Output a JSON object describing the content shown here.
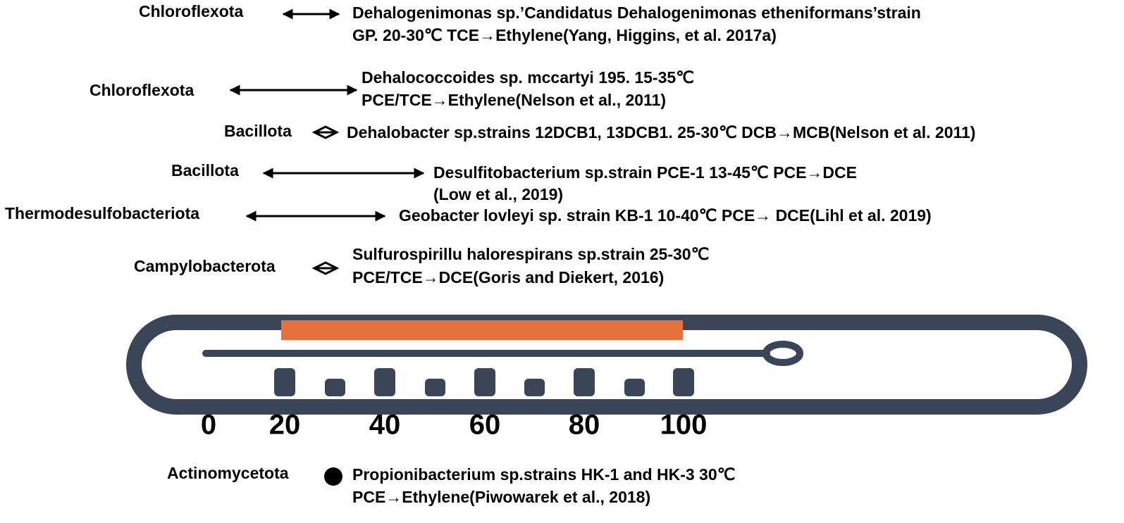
{
  "rows": [
    {
      "phylum": "Chloroflexota",
      "lines": [
        "Dehalogenimonas sp.’Candidatus Dehalogenimonas etheniformans’strain",
        "GP. 20-30℃ TCE→Ethylene(Yang, Higgins, et al. 2017a)"
      ]
    },
    {
      "phylum": "Chloroflexota",
      "lines": [
        "Dehalococcoides sp. mccartyi 195. 15-35℃",
        "PCE/TCE→Ethylene(Nelson et al., 2011)"
      ]
    },
    {
      "phylum": "Bacillota",
      "lines": [
        "Dehalobacter sp.strains 12DCB1, 13DCB1. 25-30℃ DCB→MCB(Nelson et al. 2011)"
      ]
    },
    {
      "phylum": "Bacillota",
      "lines": [
        "Desulfitobacterium sp.strain PCE-1 13-45℃ PCE→DCE",
        "(Low et al., 2019)"
      ]
    },
    {
      "phylum": "Thermodesulfobacteriota",
      "lines": [
        "Geobacter lovleyi sp. strain KB-1 10-40℃ PCE→ DCE(Lihl et al. 2019)"
      ]
    },
    {
      "phylum": "Campylobacterota",
      "lines": [
        "Sulfurospirillu halorespirans sp.strain  25-30℃",
        "PCE/TCE→DCE(Goris and Diekert, 2016)"
      ]
    }
  ],
  "scale": {
    "labels": [
      "0",
      "20",
      "40",
      "60",
      "80",
      "100"
    ]
  },
  "footer": {
    "phylum": "Actinomycetota",
    "lines": [
      "Propionibacterium sp.strains HK-1 and HK-3 30℃",
      "PCE→Ethylene(Piwowarek et al., 2018)"
    ]
  }
}
